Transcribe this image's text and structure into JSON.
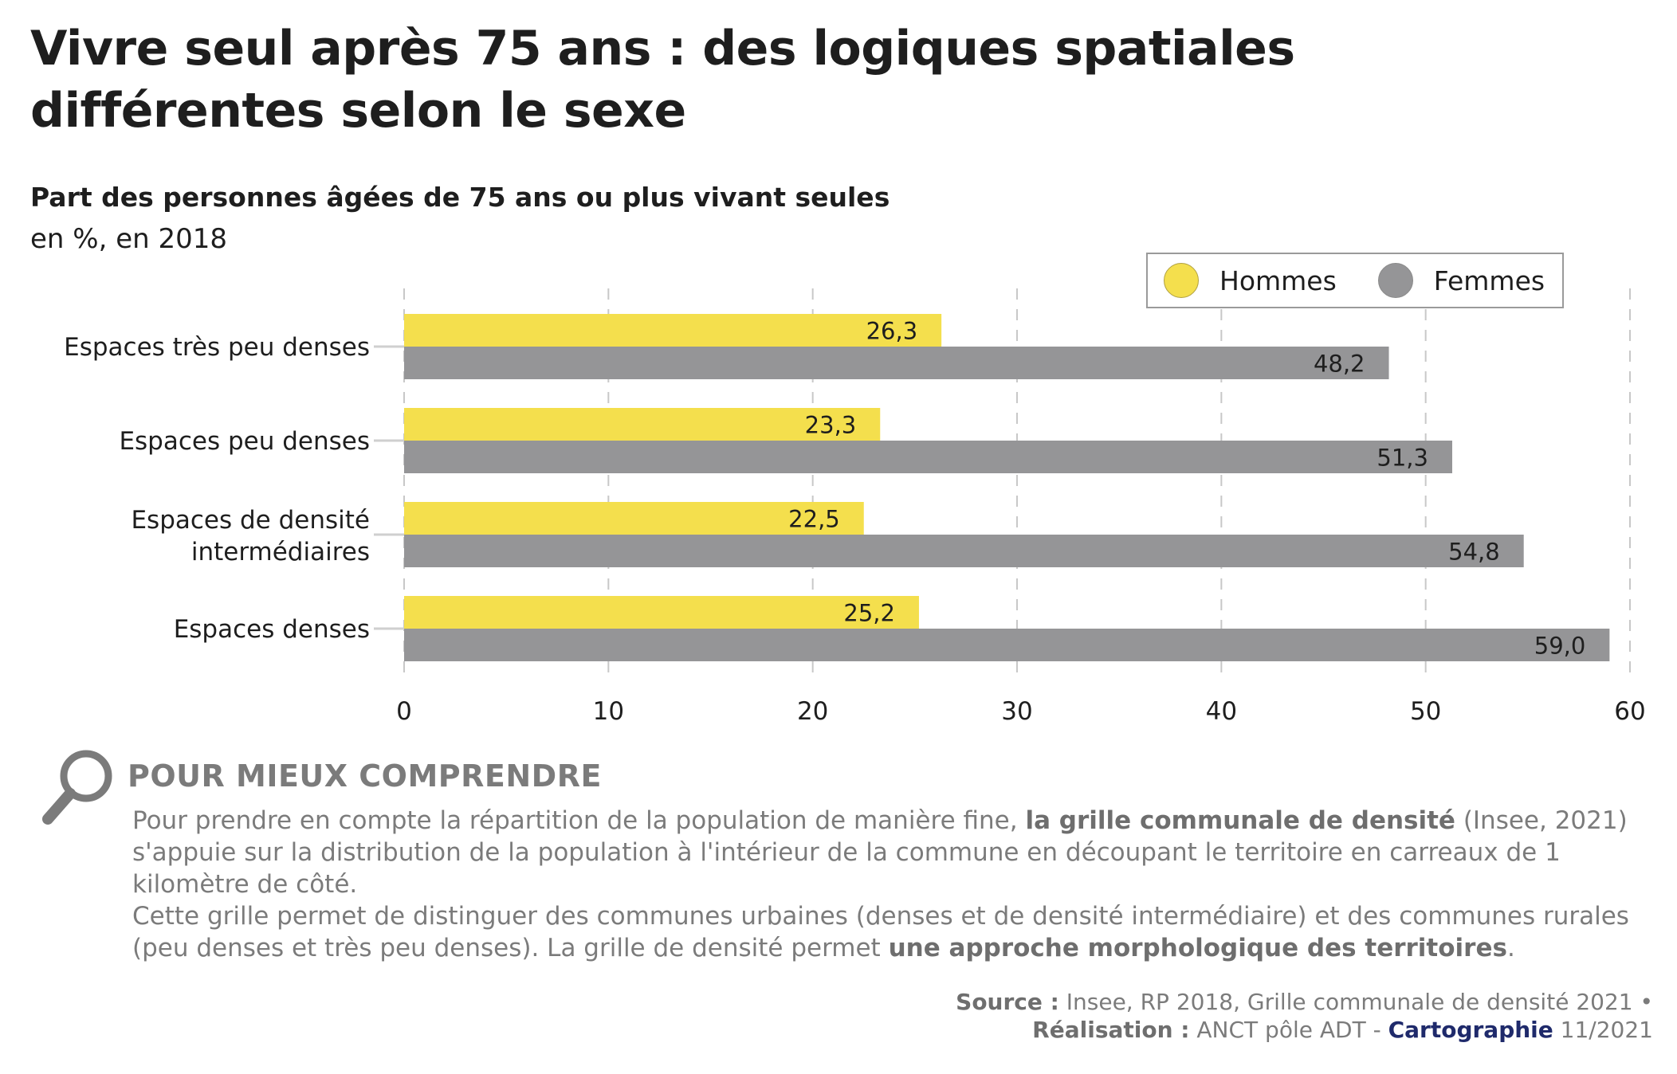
{
  "header": {
    "title_line1": "Vivre seul après 75 ans : des logiques spatiales",
    "title_line2": "différentes selon le sexe",
    "subtitle": "Part des personnes âgées de 75 ans ou plus vivant seules",
    "unit": "en %, en 2018"
  },
  "colors": {
    "hommes": "#f4df4d",
    "femmes": "#959597",
    "grid": "#c8c8c8",
    "text": "#1e1e1e",
    "note_text": "#7b7b7b",
    "accent_blue": "#1f2a6b"
  },
  "chart_data": {
    "type": "bar",
    "orientation": "horizontal",
    "title": "Part des personnes âgées de 75 ans ou plus vivant seules",
    "subtitle": "en %, en 2018",
    "xlabel": "",
    "ylabel": "",
    "categories": [
      [
        "Espaces très peu denses"
      ],
      [
        "Espaces peu denses"
      ],
      [
        "Espaces de densité",
        "intermédiaires"
      ],
      [
        "Espaces denses"
      ]
    ],
    "series": [
      {
        "name": "Hommes",
        "color": "#f4df4d",
        "values": [
          26.3,
          23.3,
          22.5,
          25.2
        ],
        "labels": [
          "26,3",
          "23,3",
          "22,5",
          "25,2"
        ]
      },
      {
        "name": "Femmes",
        "color": "#959597",
        "values": [
          48.2,
          51.3,
          54.8,
          59.0
        ],
        "labels": [
          "48,2",
          "51,3",
          "54,8",
          "59,0"
        ]
      }
    ],
    "xlim": [
      0,
      60
    ],
    "xticks": [
      0,
      10,
      20,
      30,
      40,
      50,
      60
    ],
    "xtick_labels": [
      "0",
      "10",
      "20",
      "30",
      "40",
      "50",
      "60"
    ],
    "grid": "vertical dashed",
    "legend": {
      "position": "top-right",
      "entries": [
        "Hommes",
        "Femmes"
      ]
    }
  },
  "note": {
    "heading": "POUR MIEUX COMPRENDRE",
    "icon": "magnifier-icon",
    "p1_a": "Pour prendre en compte la répartition de la population de manière fine, ",
    "p1_b": "la grille communale de densité",
    "p1_c": " (Insee, 2021) s'appuie sur la distribution de la population à l'intérieur de la commune en découpant le territoire en carreaux de 1 kilomètre de côté.",
    "p2_a": "Cette grille permet de distinguer des communes urbaines (denses et de densité intermédiaire) et des communes rurales (peu denses et très peu denses). La grille de densité permet ",
    "p2_b": "une approche morphologique des territoires",
    "p2_c": "."
  },
  "footer": {
    "source_label": "Source :",
    "source_text": " Insee, RP 2018, Grille communale de densité 2021 •",
    "realisation_label": "Réalisation :",
    "realisation_text": " ANCT pôle ADT - ",
    "carto": "Cartographie",
    "date": " 11/2021"
  }
}
